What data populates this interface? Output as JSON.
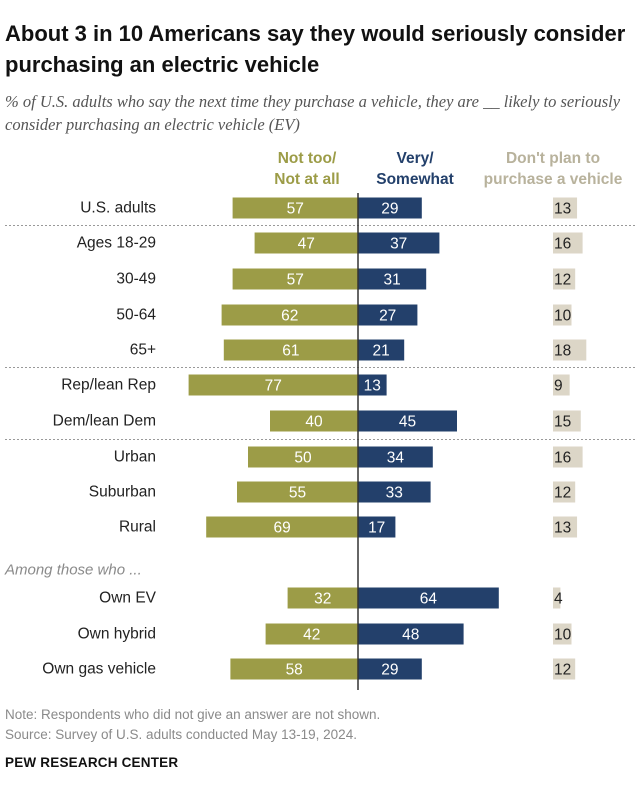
{
  "title": "About 3 in 10 Americans say they would seriously consider purchasing an electric vehicle",
  "subtitle": "% of U.S. adults who say the next time they purchase a vehicle, they are __ likely to seriously consider purchasing an electric vehicle (EV)",
  "columns": {
    "not_likely": [
      "Not too/",
      "Not at all"
    ],
    "likely": [
      "Very/",
      "Somewhat"
    ],
    "dont_plan": [
      "Don't plan to",
      "purchase a vehicle"
    ]
  },
  "colors": {
    "not_likely": "#9c9c47",
    "likely": "#23406b",
    "dont_plan": "#dcd6c7",
    "dont_plan_header": "#b8b29c",
    "separator": "#999999",
    "axis": "#333333"
  },
  "chart_data": {
    "type": "bar",
    "title": "About 3 in 10 Americans say they would seriously consider purchasing an electric vehicle",
    "categories": [
      "U.S. adults",
      "Ages 18-29",
      "30-49",
      "50-64",
      "65+",
      "Rep/lean Rep",
      "Dem/lean Dem",
      "Urban",
      "Suburban",
      "Rural",
      "Own EV",
      "Own hybrid",
      "Own gas vehicle"
    ],
    "series": [
      {
        "name": "Not too/Not at all",
        "values": [
          57,
          47,
          57,
          62,
          61,
          77,
          40,
          50,
          55,
          69,
          32,
          42,
          58
        ]
      },
      {
        "name": "Very/Somewhat",
        "values": [
          29,
          37,
          31,
          27,
          21,
          13,
          45,
          34,
          33,
          17,
          64,
          48,
          29
        ]
      },
      {
        "name": "Don't plan to purchase a vehicle",
        "values": [
          13,
          16,
          12,
          10,
          18,
          9,
          15,
          16,
          12,
          13,
          4,
          10,
          12
        ]
      }
    ],
    "section_label": "Among those who ...",
    "xlabel": "",
    "ylabel": ""
  },
  "note": "Note: Respondents who did not give an answer are not shown.",
  "source": "Source: Survey of U.S. adults conducted May 13-19, 2024.",
  "brand": "PEW RESEARCH CENTER"
}
